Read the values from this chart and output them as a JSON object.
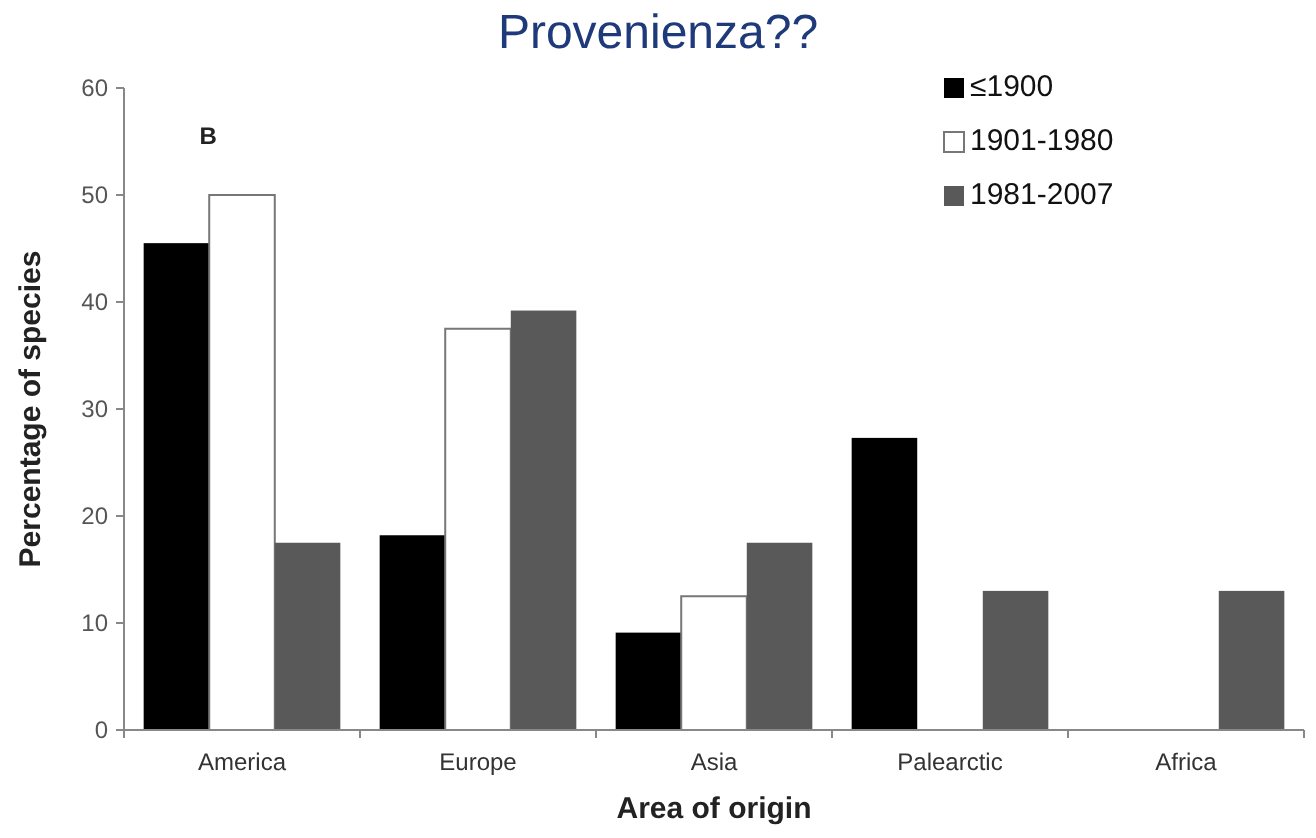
{
  "chart_data": {
    "type": "bar",
    "title": "Provenienza??",
    "xlabel": "Area of origin",
    "ylabel": "Percentage of species",
    "annotations": [
      "B"
    ],
    "categories": [
      "America",
      "Europe",
      "Asia",
      "Palearctic",
      "Africa"
    ],
    "series": [
      {
        "name": "≤1900",
        "color": "#000000",
        "values": [
          45.5,
          18.2,
          9.1,
          27.3,
          0
        ]
      },
      {
        "name": "1901-1980",
        "color": "#ffffff",
        "values": [
          50,
          37.5,
          12.5,
          0,
          0
        ]
      },
      {
        "name": "1981-2007",
        "color": "#595959",
        "values": [
          17.5,
          39.2,
          17.5,
          13,
          13
        ]
      }
    ],
    "ylim": [
      0,
      60
    ],
    "yticks": [
      0,
      10,
      20,
      30,
      40,
      50,
      60
    ],
    "legend": "top right"
  }
}
